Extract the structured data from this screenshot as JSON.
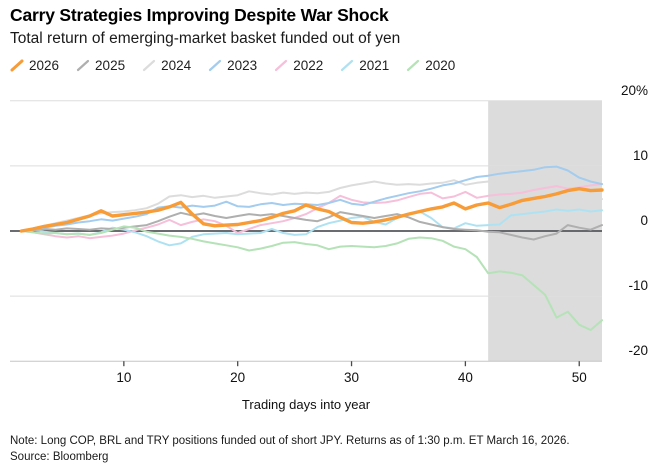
{
  "header": {
    "title": "Carry Strategies Improving Despite War Shock",
    "subtitle": "Total return of emerging-market basket funded out of yen"
  },
  "footer": {
    "note": "Note: Long COP, BRL and TRY positions funded out of short JPY. Returns as of 1:30 p.m. ET March 16, 2026.",
    "source": "Source: Bloomberg"
  },
  "chart_data": {
    "type": "line",
    "title": "Carry Strategies Improving Despite War Shock",
    "subtitle": "Total return of emerging-market basket funded out of yen",
    "xlabel": "Trading days into year",
    "ylabel": "",
    "unit": "%",
    "xlim": [
      0,
      52
    ],
    "ylim": [
      -20,
      20
    ],
    "days_range": {
      "first_day": 1,
      "last_day": 52
    },
    "x_ticks": [
      10,
      20,
      30,
      40,
      50
    ],
    "y_ticks": [
      {
        "value": 20,
        "label": "20%"
      },
      {
        "value": 10,
        "label": "10"
      },
      {
        "value": 0,
        "label": "0"
      },
      {
        "value": -10,
        "label": "-10"
      },
      {
        "value": -20,
        "label": "-20"
      }
    ],
    "zero_line": true,
    "grid": "horizontal",
    "legend_position": "top",
    "shaded_region": {
      "from_day": 42,
      "to_day": 52,
      "color": "#dcdcdc"
    },
    "series": [
      {
        "name": "2026",
        "color": "#F79C36",
        "line_width": 3.4,
        "values": [
          0,
          0.3,
          0.7,
          1.0,
          1.3,
          1.8,
          2.3,
          3.1,
          2.3,
          2.5,
          2.7,
          2.9,
          3.2,
          3.7,
          4.4,
          2.6,
          1.1,
          0.8,
          0.9,
          1.0,
          1.3,
          1.6,
          2.1,
          2.7,
          3.1,
          4.0,
          3.4,
          3.0,
          2.1,
          1.3,
          1.2,
          1.4,
          1.7,
          2.1,
          2.6,
          3.0,
          3.4,
          3.7,
          4.3,
          3.4,
          4.0,
          4.3,
          3.6,
          4.1,
          4.7,
          5.0,
          5.3,
          5.7,
          6.2,
          6.5,
          6.2,
          6.3
        ]
      },
      {
        "name": "2025",
        "color": "#AFAFAF",
        "line_width": 2,
        "values": [
          0,
          0.1,
          0.3,
          0.2,
          0.4,
          0.3,
          0.2,
          0.4,
          0.3,
          0.5,
          0.7,
          0.9,
          1.5,
          2.2,
          2.8,
          2.4,
          2.7,
          2.3,
          2.0,
          2.3,
          2.6,
          2.4,
          2.6,
          2.3,
          2.0,
          1.7,
          1.5,
          2.1,
          2.9,
          2.6,
          2.3,
          2.0,
          2.3,
          2.6,
          2.1,
          1.4,
          1.0,
          0.6,
          0.3,
          0.2,
          0.1,
          -0.1,
          -0.2,
          -0.6,
          -1.0,
          -1.3,
          -0.8,
          -0.4,
          0.9,
          0.5,
          0.2,
          0.9
        ]
      },
      {
        "name": "2024",
        "color": "#DCDCDC",
        "line_width": 2,
        "values": [
          0,
          0.4,
          0.8,
          1.2,
          1.6,
          2.0,
          2.4,
          2.7,
          2.9,
          3.0,
          3.2,
          3.5,
          4.2,
          5.3,
          5.5,
          5.2,
          5.4,
          5.1,
          5.3,
          5.5,
          6.1,
          5.8,
          5.6,
          5.9,
          5.7,
          5.9,
          5.8,
          6.0,
          6.6,
          7.0,
          7.3,
          7.6,
          7.3,
          7.1,
          7.2,
          7.1,
          7.3,
          7.4,
          7.8,
          7.1,
          7.4,
          7.6,
          7.0,
          6.5,
          5.8,
          5.5,
          5.2,
          5.0,
          5.3,
          5.5,
          5.3,
          4.9
        ]
      },
      {
        "name": "2023",
        "color": "#A3CCEE",
        "line_width": 2,
        "values": [
          0,
          0.2,
          0.5,
          0.8,
          1.0,
          1.3,
          1.5,
          1.8,
          1.6,
          1.9,
          2.2,
          2.6,
          3.6,
          3.8,
          3.6,
          3.9,
          3.7,
          3.9,
          4.5,
          3.8,
          3.7,
          4.1,
          4.3,
          4.0,
          4.2,
          4.1,
          4.0,
          4.3,
          4.8,
          4.2,
          4.0,
          4.5,
          5.0,
          5.4,
          5.8,
          6.1,
          6.5,
          7.0,
          7.3,
          7.8,
          8.3,
          8.5,
          8.8,
          9.0,
          9.2,
          9.4,
          9.8,
          9.9,
          9.3,
          8.2,
          7.6,
          7.2
        ]
      },
      {
        "name": "2022",
        "color": "#F6BFDA",
        "line_width": 2,
        "values": [
          0,
          -0.2,
          -0.5,
          -0.8,
          -1.0,
          -0.8,
          -1.1,
          -0.9,
          -0.7,
          -0.4,
          0.1,
          0.5,
          1.0,
          1.7,
          0.9,
          1.4,
          1.8,
          1.5,
          0.8,
          -0.3,
          0.3,
          0.9,
          1.2,
          1.5,
          2.0,
          2.6,
          3.5,
          4.3,
          5.4,
          4.8,
          4.4,
          4.3,
          4.4,
          4.7,
          5.2,
          5.7,
          5.9,
          5.0,
          5.3,
          6.0,
          5.1,
          5.4,
          5.6,
          5.7,
          5.9,
          6.3,
          6.6,
          6.9,
          6.5,
          6.7,
          7.0,
          7.2
        ]
      },
      {
        "name": "2021",
        "color": "#AEE2F2",
        "line_width": 2,
        "values": [
          0,
          0.2,
          -0.1,
          -0.3,
          -0.5,
          -0.4,
          -0.6,
          -0.2,
          0.5,
          0.2,
          -0.2,
          -0.8,
          -1.6,
          -2.2,
          -1.9,
          -0.9,
          -0.5,
          -0.4,
          -0.3,
          -0.5,
          -0.4,
          -0.3,
          0.3,
          -0.3,
          -0.6,
          -0.5,
          0.6,
          1.2,
          1.6,
          2.0,
          2.2,
          1.4,
          1.0,
          2.0,
          2.6,
          3.0,
          2.0,
          0.6,
          0.4,
          1.2,
          0.8,
          0.9,
          1.0,
          2.4,
          2.6,
          2.8,
          3.0,
          3.3,
          3.1,
          3.3,
          3.0,
          3.2
        ]
      },
      {
        "name": "2020",
        "color": "#B5E2B7",
        "line_width": 2,
        "values": [
          0,
          -0.2,
          -0.4,
          -0.3,
          -0.5,
          -0.4,
          -0.6,
          -0.3,
          0.2,
          0.7,
          0.5,
          -0.1,
          -0.4,
          -0.7,
          -0.9,
          -1.2,
          -1.6,
          -1.9,
          -2.2,
          -2.5,
          -3.0,
          -2.7,
          -2.3,
          -1.8,
          -1.7,
          -2.0,
          -2.2,
          -2.8,
          -2.4,
          -2.3,
          -2.4,
          -2.5,
          -2.3,
          -1.9,
          -1.2,
          -1.0,
          -1.1,
          -1.5,
          -2.4,
          -2.8,
          -4.0,
          -6.5,
          -6.2,
          -6.4,
          -6.8,
          -8.3,
          -9.8,
          -13.3,
          -12.4,
          -14.4,
          -15.2,
          -13.7
        ]
      }
    ],
    "style": {
      "gridline_color": "#DEDEDE",
      "axis_line_color": "#C6C6C6",
      "zero_line_color": "#56575B",
      "tick_mark_color": "#4A4A4A"
    }
  }
}
